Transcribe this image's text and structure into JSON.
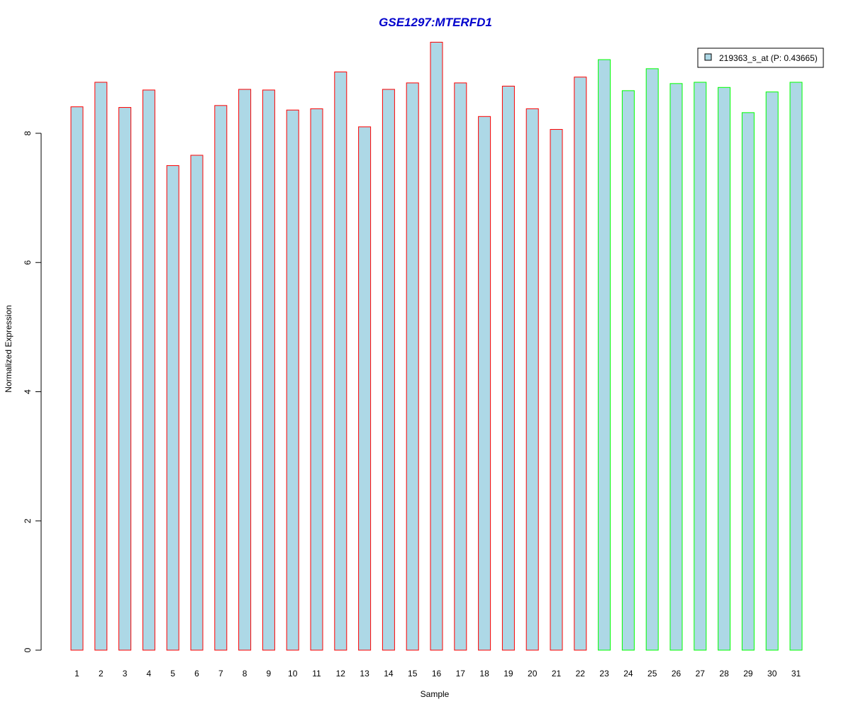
{
  "chart_data": {
    "type": "bar",
    "title": "GSE1297:MTERFD1",
    "xlabel": "Sample",
    "ylabel": "Normalized Expression",
    "ylim": [
      0,
      9.4
    ],
    "yticks": [
      "0",
      "2",
      "4",
      "6",
      "8"
    ],
    "categories": [
      "1",
      "2",
      "3",
      "4",
      "5",
      "6",
      "7",
      "8",
      "9",
      "10",
      "11",
      "12",
      "13",
      "14",
      "15",
      "16",
      "17",
      "18",
      "19",
      "20",
      "21",
      "22",
      "23",
      "24",
      "25",
      "26",
      "27",
      "28",
      "29",
      "30",
      "31"
    ],
    "values": [
      8.41,
      8.79,
      8.4,
      8.67,
      7.5,
      7.66,
      8.43,
      8.68,
      8.67,
      8.36,
      8.38,
      8.95,
      8.1,
      8.68,
      8.78,
      9.41,
      8.78,
      8.26,
      8.73,
      8.38,
      8.06,
      8.87,
      9.14,
      8.66,
      9.0,
      8.77,
      8.79,
      8.71,
      8.32,
      8.64,
      8.79
    ],
    "groups": [
      "red",
      "red",
      "red",
      "red",
      "red",
      "red",
      "red",
      "red",
      "red",
      "red",
      "red",
      "red",
      "red",
      "red",
      "red",
      "red",
      "red",
      "red",
      "red",
      "red",
      "red",
      "red",
      "green",
      "green",
      "green",
      "green",
      "green",
      "green",
      "green",
      "green",
      "green"
    ],
    "legend": {
      "position": "top-right",
      "entries": [
        {
          "name": "219363_s_at (P: 0.43665)",
          "color": "#ADD8E6"
        }
      ]
    },
    "grid": false,
    "colors": {
      "fill": "#ADD8E6",
      "red": "#FF0000",
      "green": "#00FF00",
      "title": "#0000CC"
    }
  }
}
